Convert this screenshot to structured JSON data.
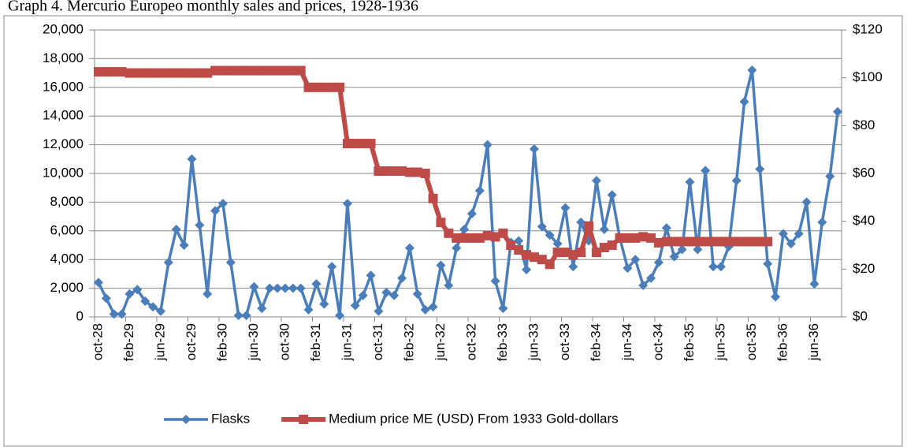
{
  "chart_data": {
    "type": "line",
    "title": "Graph 4. Mercurio Europeo monthly sales and prices, 1928-1936",
    "categories": [
      "oct-28",
      null,
      null,
      null,
      "feb-29",
      null,
      null,
      null,
      "jun-29",
      null,
      null,
      null,
      "oct-29",
      null,
      null,
      null,
      "feb-30",
      null,
      null,
      null,
      "jun-30",
      null,
      null,
      null,
      "oct-30",
      null,
      null,
      null,
      "feb-31",
      null,
      null,
      null,
      "jun-31",
      null,
      null,
      null,
      "oct-31",
      null,
      null,
      null,
      "feb-32",
      null,
      null,
      null,
      "jun-32",
      null,
      null,
      null,
      "oct-32",
      null,
      null,
      null,
      "feb-33",
      null,
      null,
      null,
      "jun-33",
      null,
      null,
      null,
      "oct-33",
      null,
      null,
      null,
      "feb-34",
      null,
      null,
      null,
      "jun-34",
      null,
      null,
      null,
      "oct-34",
      null,
      null,
      null,
      "feb-35",
      null,
      null,
      null,
      "jun-35",
      null,
      null,
      null,
      "oct-35",
      null,
      null,
      null,
      "feb-36",
      null,
      null,
      null,
      "jun-36",
      null,
      null,
      null
    ],
    "series": [
      {
        "name": "Flasks",
        "color": "#4a7ebb",
        "marker": "diamond",
        "values": [
          2400,
          1300,
          200,
          200,
          1600,
          1900,
          1100,
          700,
          400,
          3800,
          6100,
          5000,
          11000,
          6400,
          1600,
          7400,
          7900,
          3800,
          100,
          100,
          2100,
          600,
          2000,
          2000,
          2000,
          2000,
          2000,
          500,
          2300,
          900,
          3500,
          100,
          7900,
          800,
          1500,
          2900,
          400,
          1700,
          1500,
          2700,
          4800,
          1600,
          500,
          700,
          3600,
          2200,
          4800,
          6100,
          7200,
          8800,
          12000,
          2500,
          600,
          5200,
          5300,
          3300,
          11700,
          6300,
          5700,
          5100,
          7600,
          3500,
          6600,
          5300,
          9500,
          6100,
          8500,
          5500,
          3400,
          4000,
          2200,
          2700,
          3800,
          6200,
          4200,
          4700,
          9400,
          4700,
          10200,
          3500,
          3500,
          4900,
          9500,
          15000,
          17200,
          10300,
          3700,
          1400,
          5800,
          5100,
          5800,
          8000,
          2300,
          6600,
          9800,
          14300
        ]
      },
      {
        "name": "Medium price ME (USD) From 1933 Gold-dollars",
        "color": "#be4b48",
        "marker": "square",
        "axis": "y2",
        "values": [
          102.5,
          102.5,
          102.5,
          102.5,
          102,
          102,
          102,
          102,
          102,
          102,
          102,
          102,
          102,
          102,
          102,
          103,
          103,
          103,
          103,
          103,
          103,
          103,
          103,
          103,
          103,
          103,
          103,
          96,
          96,
          96,
          96,
          96,
          72.5,
          72.5,
          72.5,
          72.5,
          61,
          61,
          61,
          61,
          60.5,
          60.5,
          60,
          49.5,
          39.5,
          35,
          33,
          33,
          33,
          33,
          34,
          33.5,
          35,
          30,
          28,
          26,
          25,
          24,
          22,
          27,
          27,
          26,
          27,
          38,
          27,
          29,
          30,
          33,
          33,
          33,
          33.5,
          33,
          31,
          31.5,
          31.5,
          31.5,
          31.5,
          31.5,
          31.5,
          31.5,
          31.5,
          31.5,
          31.5,
          31.5,
          31.5,
          31.5,
          31.5,
          null,
          null,
          null,
          null,
          null,
          null,
          null,
          null,
          null
        ]
      }
    ],
    "ylim": [
      0,
      20000
    ],
    "yticks": [
      0,
      {
        "value": 2000,
        "label": "2,000"
      },
      {
        "value": 4000,
        "label": "4,000"
      },
      {
        "value": 6000,
        "label": "6,000"
      },
      {
        "value": 8000,
        "label": "8,000"
      },
      {
        "value": 10000,
        "label": "10,000"
      },
      {
        "value": 12000,
        "label": "12,000"
      },
      {
        "value": 14000,
        "label": "14,000"
      },
      {
        "value": 16000,
        "label": "16,000"
      },
      {
        "value": 18000,
        "label": "18,000"
      },
      {
        "value": 20000,
        "label": "20,000"
      }
    ],
    "y2lim": [
      0,
      120
    ],
    "y2ticks": [
      {
        "value": 0,
        "label": "$0"
      },
      {
        "value": 20,
        "label": "$20"
      },
      {
        "value": 40,
        "label": "$40"
      },
      {
        "value": 60,
        "label": "$60"
      },
      {
        "value": 80,
        "label": "$80"
      },
      {
        "value": 100,
        "label": "$100"
      },
      {
        "value": 120,
        "label": "$120"
      }
    ],
    "grid": true,
    "legend": "bottom"
  }
}
